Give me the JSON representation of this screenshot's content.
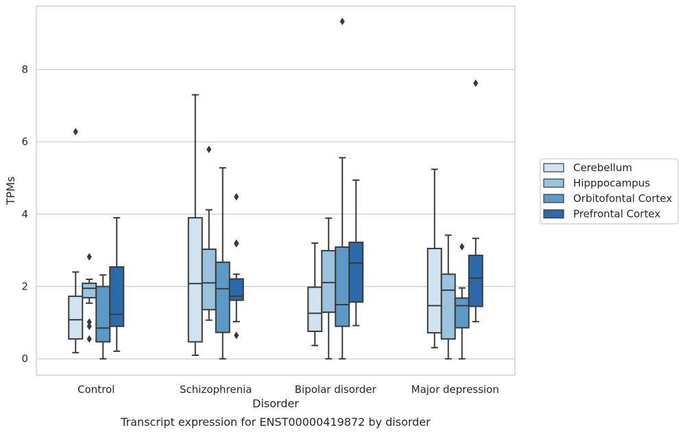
{
  "chart_data": {
    "type": "box",
    "title": "",
    "caption": "Transcript expression for ENST00000419872 by disorder",
    "xlabel": "Disorder",
    "ylabel": "TPMs",
    "ylim": [
      -0.45,
      9.75
    ],
    "yticks": [
      0,
      2,
      4,
      6,
      8
    ],
    "grid": "horizontal",
    "legend_position": "right",
    "categories": [
      "Control",
      "Schizophrenia",
      "Bipolar disorder",
      "Major depression"
    ],
    "series": [
      {
        "name": "Cerebellum",
        "color": "#d1e2f0",
        "boxes": [
          {
            "whislo": 0.17,
            "q1": 0.55,
            "med": 1.08,
            "q3": 1.73,
            "whishi": 2.4,
            "fliers": [
              6.28
            ]
          },
          {
            "whislo": 0.1,
            "q1": 0.47,
            "med": 2.08,
            "q3": 3.9,
            "whishi": 7.3,
            "fliers": []
          },
          {
            "whislo": 0.37,
            "q1": 0.76,
            "med": 1.26,
            "q3": 1.98,
            "whishi": 3.2,
            "fliers": []
          },
          {
            "whislo": 0.31,
            "q1": 0.72,
            "med": 1.47,
            "q3": 3.05,
            "whishi": 5.24,
            "fliers": []
          }
        ]
      },
      {
        "name": "Hipppocampus",
        "color": "#9cc3de",
        "boxes": [
          {
            "whislo": 1.54,
            "q1": 1.69,
            "med": 1.95,
            "q3": 2.09,
            "whishi": 2.2,
            "fliers": [
              2.82,
              1.02,
              0.9,
              0.55
            ]
          },
          {
            "whislo": 1.07,
            "q1": 1.36,
            "med": 2.1,
            "q3": 3.03,
            "whishi": 4.12,
            "fliers": [
              5.79
            ]
          },
          {
            "whislo": 0.0,
            "q1": 1.29,
            "med": 2.11,
            "q3": 2.99,
            "whishi": 3.89,
            "fliers": []
          },
          {
            "whislo": 0.0,
            "q1": 0.55,
            "med": 1.9,
            "q3": 2.34,
            "whishi": 3.42,
            "fliers": []
          }
        ]
      },
      {
        "name": "Orbitofontal Cortex",
        "color": "#5d99c7",
        "boxes": [
          {
            "whislo": 0.0,
            "q1": 0.47,
            "med": 0.85,
            "q3": 2.0,
            "whishi": 2.32,
            "fliers": []
          },
          {
            "whislo": 0.0,
            "q1": 0.73,
            "med": 1.94,
            "q3": 2.67,
            "whishi": 5.28,
            "fliers": []
          },
          {
            "whislo": 0.0,
            "q1": 0.9,
            "med": 1.5,
            "q3": 3.09,
            "whishi": 5.56,
            "fliers": [
              9.33
            ]
          },
          {
            "whislo": 0.0,
            "q1": 0.86,
            "med": 1.47,
            "q3": 1.68,
            "whishi": 1.96,
            "fliers": [
              3.1
            ]
          }
        ]
      },
      {
        "name": "Prefrontal Cortex",
        "color": "#2c6aab",
        "boxes": [
          {
            "whislo": 0.21,
            "q1": 0.9,
            "med": 1.23,
            "q3": 2.54,
            "whishi": 3.9,
            "fliers": []
          },
          {
            "whislo": 1.03,
            "q1": 1.62,
            "med": 1.73,
            "q3": 2.21,
            "whishi": 2.34,
            "fliers": [
              4.48,
              3.2,
              3.18,
              0.65
            ]
          },
          {
            "whislo": 0.92,
            "q1": 1.57,
            "med": 2.65,
            "q3": 3.22,
            "whishi": 4.94,
            "fliers": []
          },
          {
            "whislo": 1.03,
            "q1": 1.45,
            "med": 2.23,
            "q3": 2.86,
            "whishi": 3.33,
            "fliers": [
              7.62
            ]
          }
        ]
      }
    ]
  }
}
